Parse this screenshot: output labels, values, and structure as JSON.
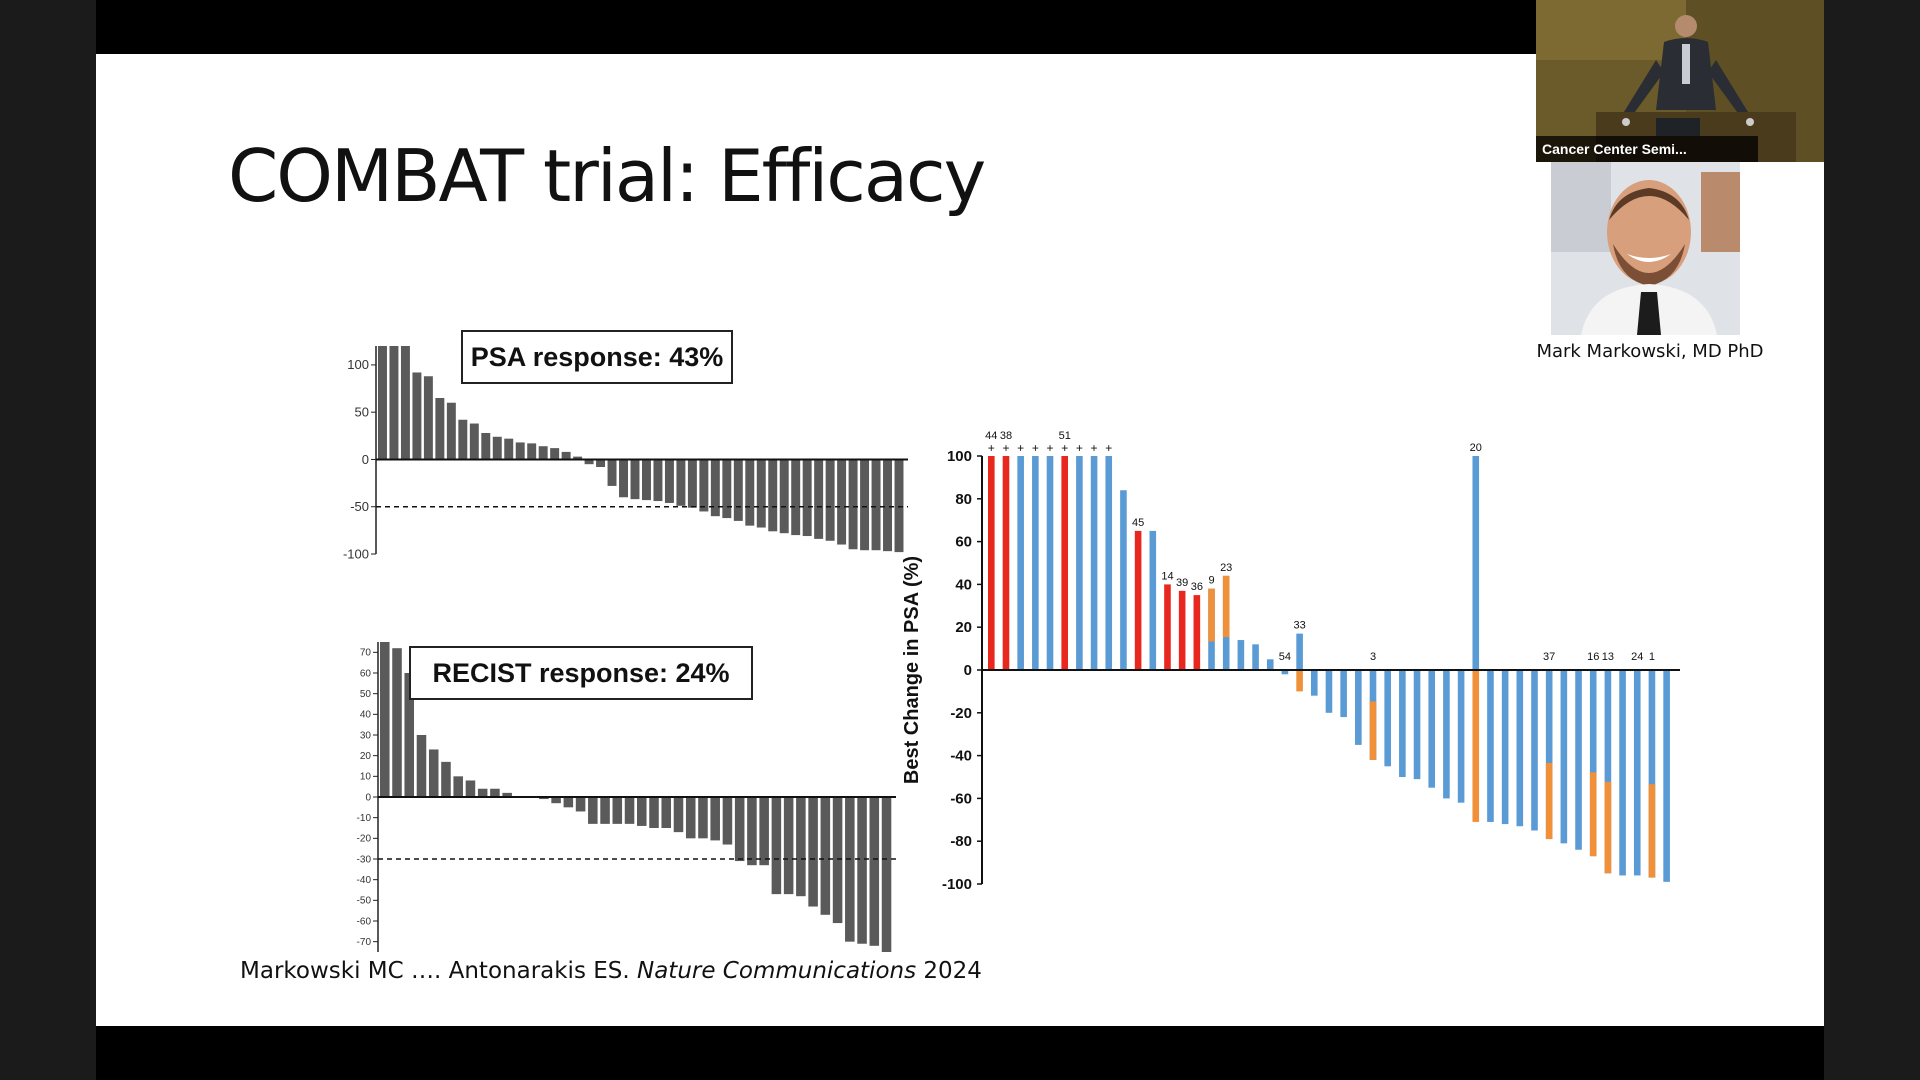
{
  "slide": {
    "title": "COMBAT trial: Efficacy",
    "psa_response_label": "PSA response: 43%",
    "recist_response_label": "RECIST response: 24%",
    "citation_authors": "Markowski MC …. Antonarakis ES. ",
    "citation_journal": "Nature Communications",
    "citation_year": " 2024"
  },
  "video_call": {
    "participant_label": "Cancer Center Semi...",
    "speaker_name": "Mark Markowski, MD PhD"
  },
  "colors": {
    "background_outer": "#1b1b1b",
    "slide_bg": "#ffffff",
    "gray_bar": "#5a5a5a",
    "red_bar": "#e8281f",
    "blue_bar": "#5b9bd5",
    "orange_bar": "#f0913a"
  },
  "chart_data": [
    {
      "type": "bar",
      "name": "psa_waterfall_small",
      "yticks": [
        "100",
        "50",
        "0",
        "-50",
        "-100"
      ],
      "ylim": [
        -100,
        120
      ],
      "threshold": -50,
      "values": [
        120,
        120,
        120,
        92,
        88,
        65,
        60,
        42,
        38,
        28,
        24,
        22,
        18,
        17,
        14,
        12,
        8,
        3,
        -5,
        -8,
        -28,
        -40,
        -42,
        -43,
        -44,
        -46,
        -49,
        -51,
        -55,
        -60,
        -62,
        -65,
        -70,
        -72,
        -76,
        -78,
        -80,
        -81,
        -84,
        -86,
        -90,
        -95,
        -96,
        -96,
        -97,
        -98
      ]
    },
    {
      "type": "bar",
      "name": "recist_waterfall",
      "yticks": [
        "70",
        "60",
        "50",
        "40",
        "30",
        "20",
        "10",
        "0",
        "-10",
        "-20",
        "-30",
        "-40",
        "-50",
        "-60",
        "-70"
      ],
      "ylim": [
        -75,
        75
      ],
      "threshold": -30,
      "values": [
        76,
        72,
        60,
        30,
        23,
        17,
        10,
        8,
        4,
        4,
        2,
        0,
        0,
        -1,
        -3,
        -5,
        -7,
        -13,
        -13,
        -13,
        -13,
        -14,
        -15,
        -15,
        -17,
        -20,
        -20,
        -21,
        -23,
        -31,
        -33,
        -33,
        -47,
        -47,
        -48,
        -53,
        -57,
        -61,
        -70,
        -71,
        -72,
        -75
      ]
    },
    {
      "type": "bar",
      "name": "psa_best_change",
      "ylabel": "Best Change in PSA (%)",
      "yticks": [
        "100",
        "80",
        "60",
        "40",
        "20",
        "0",
        "-20",
        "-40",
        "-60",
        "-80",
        "-100"
      ],
      "ylim": [
        -100,
        100
      ],
      "bars": [
        {
          "value": 100,
          "color": "red",
          "label": "44",
          "plus": true
        },
        {
          "value": 100,
          "color": "red",
          "label": "38",
          "plus": true
        },
        {
          "value": 100,
          "color": "blue",
          "plus": true
        },
        {
          "value": 100,
          "color": "blue",
          "plus": true
        },
        {
          "value": 100,
          "color": "blue",
          "plus": true
        },
        {
          "value": 100,
          "color": "red",
          "label": "51",
          "plus": true
        },
        {
          "value": 100,
          "color": "blue",
          "plus": true
        },
        {
          "value": 100,
          "color": "blue",
          "plus": true
        },
        {
          "value": 100,
          "color": "blue",
          "plus": true
        },
        {
          "value": 84,
          "color": "blue"
        },
        {
          "value": 65,
          "color": "red",
          "label": "45"
        },
        {
          "value": 65,
          "color": "blue"
        },
        {
          "value": 40,
          "color": "red",
          "label": "14"
        },
        {
          "value": 37,
          "color": "red",
          "label": "39"
        },
        {
          "value": 35,
          "color": "red",
          "label": "36"
        },
        {
          "value": 38,
          "color": "blue",
          "orange": 38,
          "label": "9"
        },
        {
          "value": 44,
          "color": "blue",
          "orange": 44,
          "label": "23"
        },
        {
          "value": 14,
          "color": "blue"
        },
        {
          "value": 12,
          "color": "blue"
        },
        {
          "value": 5,
          "color": "blue"
        },
        {
          "value": -2,
          "color": "blue",
          "label": "54"
        },
        {
          "value": 17,
          "color": "blue",
          "orange": -10,
          "label": "33"
        },
        {
          "value": -12,
          "color": "blue"
        },
        {
          "value": -20,
          "color": "blue"
        },
        {
          "value": -22,
          "color": "blue"
        },
        {
          "value": -35,
          "color": "blue"
        },
        {
          "value": -42,
          "color": "blue",
          "orange": -42,
          "label": "3"
        },
        {
          "value": -45,
          "color": "blue"
        },
        {
          "value": -50,
          "color": "blue"
        },
        {
          "value": -51,
          "color": "blue"
        },
        {
          "value": -55,
          "color": "blue"
        },
        {
          "value": -60,
          "color": "blue"
        },
        {
          "value": -62,
          "color": "blue"
        },
        {
          "value": 100,
          "color": "blue",
          "orange": -71,
          "label": "20"
        },
        {
          "value": -71,
          "color": "blue"
        },
        {
          "value": -72,
          "color": "blue"
        },
        {
          "value": -73,
          "color": "blue"
        },
        {
          "value": -75,
          "color": "blue"
        },
        {
          "value": -79,
          "color": "blue",
          "orange": -79,
          "label": "37"
        },
        {
          "value": -81,
          "color": "blue"
        },
        {
          "value": -84,
          "color": "blue"
        },
        {
          "value": -87,
          "color": "blue",
          "orange": -87,
          "label": "16"
        },
        {
          "value": -95,
          "color": "blue",
          "orange": -95,
          "label": "13"
        },
        {
          "value": -96,
          "color": "blue"
        },
        {
          "value": -96,
          "color": "blue",
          "label": "24"
        },
        {
          "value": -97,
          "color": "blue",
          "orange": -97,
          "label": "1"
        },
        {
          "value": -99,
          "color": "blue"
        }
      ]
    }
  ]
}
